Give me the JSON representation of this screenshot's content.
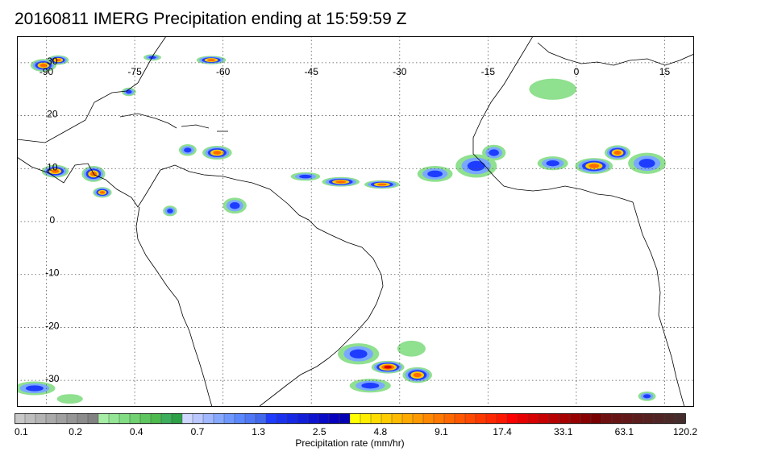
{
  "title": "20160811 IMERG Precipitation ending at 15:59:59 Z",
  "map": {
    "lon_range": [
      -95,
      20
    ],
    "lat_range": [
      -35,
      35
    ],
    "longitude_ticks": [
      {
        "value": -90,
        "label": "-90"
      },
      {
        "value": -75,
        "label": "-75"
      },
      {
        "value": -60,
        "label": "-60"
      },
      {
        "value": -45,
        "label": "-45"
      },
      {
        "value": -30,
        "label": "-30"
      },
      {
        "value": -15,
        "label": "-15"
      },
      {
        "value": 0,
        "label": "0"
      },
      {
        "value": 15,
        "label": "15"
      }
    ],
    "latitude_ticks": [
      {
        "value": 30,
        "label": "30"
      },
      {
        "value": 20,
        "label": "20"
      },
      {
        "value": 10,
        "label": "10"
      },
      {
        "value": 0,
        "label": "0"
      },
      {
        "value": -10,
        "label": "-10"
      },
      {
        "value": -20,
        "label": "-20"
      },
      {
        "value": -30,
        "label": "-30"
      }
    ],
    "gridlines": "dotted",
    "coastlines": "black"
  },
  "colorbar": {
    "caption": "Precipitation rate (mm/hr)",
    "labels": [
      "0.1",
      "0.2",
      "0.4",
      "0.7",
      "1.3",
      "2.5",
      "4.8",
      "9.1",
      "17.4",
      "33.1",
      "63.1",
      "120.2"
    ],
    "colors": [
      "#c8c8c8",
      "#bebebe",
      "#b4b4b4",
      "#aaaaaa",
      "#a0a0a0",
      "#969696",
      "#8c8c8c",
      "#828282",
      "#a6eea6",
      "#94e694",
      "#82de82",
      "#70d270",
      "#5ec65e",
      "#4cba4c",
      "#3cae5c",
      "#2ea046",
      "#cfd8ff",
      "#bac8ff",
      "#a0b8ff",
      "#86a8ff",
      "#6e98ff",
      "#5a88ff",
      "#4e78f6",
      "#4268ee",
      "#1e3cff",
      "#1a32f0",
      "#1428e6",
      "#101edc",
      "#0c14d2",
      "#080ac8",
      "#0600be",
      "#0400b4",
      "#ffff00",
      "#ffee00",
      "#ffdd00",
      "#ffcc00",
      "#ffbb00",
      "#ffaa00",
      "#ff9900",
      "#ff8800",
      "#ff7800",
      "#ff6800",
      "#ff5800",
      "#ff4800",
      "#ff3800",
      "#ff2800",
      "#ff1800",
      "#ff0000",
      "#e80000",
      "#d80000",
      "#c80000",
      "#b80000",
      "#a80000",
      "#980000",
      "#880000",
      "#780000",
      "#6e1010",
      "#681414",
      "#621818",
      "#5c1c1c",
      "#562020",
      "#502424",
      "#4a2828",
      "#442c2c"
    ]
  },
  "precip_cells": [
    {
      "name": "gulf-mexico",
      "lon": -90.5,
      "lat": 29.5,
      "rx": 2.2,
      "ry": 1.2,
      "level": "orange"
    },
    {
      "name": "gulf-mexico-2",
      "lon": -88,
      "lat": 30.5,
      "rx": 1.8,
      "ry": 0.9,
      "level": "orange"
    },
    {
      "name": "bahamas",
      "lon": -76,
      "lat": 24.5,
      "rx": 1.2,
      "ry": 0.8,
      "level": "blue"
    },
    {
      "name": "atlantic-64w",
      "lon": -62,
      "lat": 30.5,
      "rx": 2.5,
      "ry": 0.8,
      "level": "orange"
    },
    {
      "name": "atlantic-72w",
      "lon": -72,
      "lat": 31,
      "rx": 1.5,
      "ry": 0.6,
      "level": "blue"
    },
    {
      "name": "caribbean-e",
      "lon": -61,
      "lat": 13,
      "rx": 2.5,
      "ry": 1.3,
      "level": "orange"
    },
    {
      "name": "caribbean-e2",
      "lon": -66,
      "lat": 13.5,
      "rx": 1.5,
      "ry": 1.1,
      "level": "blue"
    },
    {
      "name": "central-am-1",
      "lon": -88.5,
      "lat": 9.5,
      "rx": 2.3,
      "ry": 1.2,
      "level": "orange"
    },
    {
      "name": "central-am-2",
      "lon": -82,
      "lat": 9,
      "rx": 2.0,
      "ry": 1.5,
      "level": "orange"
    },
    {
      "name": "panama",
      "lon": -80.5,
      "lat": 5.5,
      "rx": 1.6,
      "ry": 1.0,
      "level": "orange"
    },
    {
      "name": "itcz-1",
      "lon": -46,
      "lat": 8.5,
      "rx": 2.5,
      "ry": 0.8,
      "level": "blue"
    },
    {
      "name": "itcz-2",
      "lon": -40,
      "lat": 7.5,
      "rx": 3.2,
      "ry": 0.9,
      "level": "orange"
    },
    {
      "name": "itcz-3",
      "lon": -33,
      "lat": 7.0,
      "rx": 3.0,
      "ry": 0.8,
      "level": "orange"
    },
    {
      "name": "itcz-4",
      "lon": -24,
      "lat": 9,
      "rx": 3.0,
      "ry": 1.5,
      "level": "blue"
    },
    {
      "name": "itcz-5",
      "lon": -17,
      "lat": 10.5,
      "rx": 3.5,
      "ry": 2.2,
      "level": "blue"
    },
    {
      "name": "senegal",
      "lon": -14,
      "lat": 13,
      "rx": 2.0,
      "ry": 1.5,
      "level": "blue"
    },
    {
      "name": "w-africa-1",
      "lon": -4,
      "lat": 11,
      "rx": 2.6,
      "ry": 1.3,
      "level": "blue"
    },
    {
      "name": "w-africa-2",
      "lon": 3,
      "lat": 10.5,
      "rx": 3.2,
      "ry": 1.5,
      "level": "orange"
    },
    {
      "name": "w-africa-3",
      "lon": 7,
      "lat": 13,
      "rx": 2.2,
      "ry": 1.4,
      "level": "orange"
    },
    {
      "name": "w-africa-4",
      "lon": 12,
      "lat": 11,
      "rx": 3.2,
      "ry": 2.0,
      "level": "blue"
    },
    {
      "name": "sahara-blob",
      "lon": -4,
      "lat": 25,
      "rx": 4.0,
      "ry": 2.0,
      "level": "green"
    },
    {
      "name": "amazon-1",
      "lon": -69,
      "lat": 2,
      "rx": 1.2,
      "ry": 1.0,
      "level": "blue"
    },
    {
      "name": "amazon-2",
      "lon": -58,
      "lat": 3,
      "rx": 2.0,
      "ry": 1.5,
      "level": "blue"
    },
    {
      "name": "s-atl-1",
      "lon": -37,
      "lat": -25,
      "rx": 3.5,
      "ry": 2.0,
      "level": "blue"
    },
    {
      "name": "s-atl-2",
      "lon": -32,
      "lat": -27.5,
      "rx": 2.8,
      "ry": 1.2,
      "level": "red"
    },
    {
      "name": "s-atl-3",
      "lon": -27,
      "lat": -29,
      "rx": 2.5,
      "ry": 1.5,
      "level": "orange"
    },
    {
      "name": "s-atl-4",
      "lon": -35,
      "lat": -31,
      "rx": 3.5,
      "ry": 1.3,
      "level": "blue"
    },
    {
      "name": "s-atl-5",
      "lon": -28,
      "lat": -24,
      "rx": 2.4,
      "ry": 1.5,
      "level": "green"
    },
    {
      "name": "s-pacific",
      "lon": -92,
      "lat": -31.5,
      "rx": 3.5,
      "ry": 1.3,
      "level": "blue"
    },
    {
      "name": "s-pacific-2",
      "lon": -86,
      "lat": -33.5,
      "rx": 2.2,
      "ry": 0.9,
      "level": "green"
    },
    {
      "name": "s-africa",
      "lon": 12,
      "lat": -33,
      "rx": 1.5,
      "ry": 0.9,
      "level": "blue"
    }
  ]
}
